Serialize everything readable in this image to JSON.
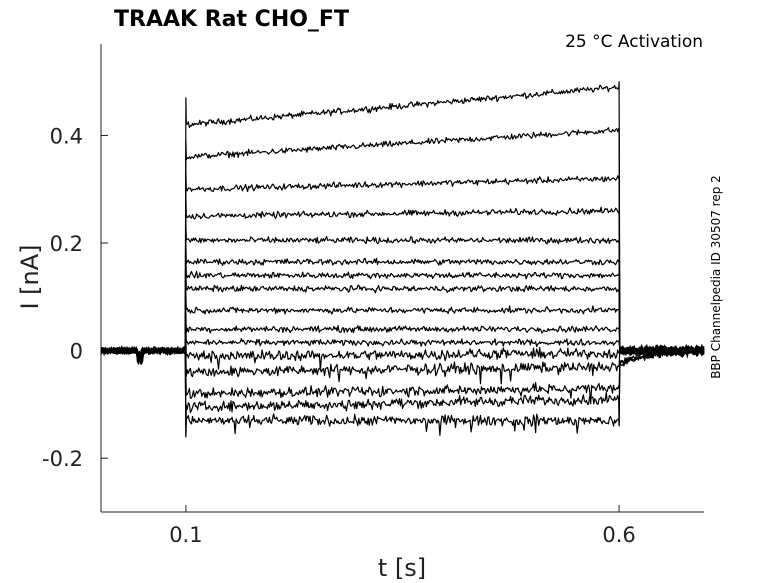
{
  "chart_data": {
    "type": "line",
    "title": "TRAAK  Rat  CHO_FT",
    "subtitle": "25 °C  Activation",
    "xlabel": "t [s]",
    "ylabel": "I [nA]",
    "side_note": "BBP Channelpedia ID 30507 rep 2",
    "xlim": [
      0.002,
      0.698
    ],
    "ylim": [
      -0.3,
      0.57
    ],
    "x_ticks": [
      {
        "value": 0.1,
        "label": "0.1"
      },
      {
        "value": 0.6,
        "label": "0.6"
      }
    ],
    "y_ticks": [
      {
        "value": -0.2,
        "label": "-0.2"
      },
      {
        "value": 0,
        "label": "0"
      },
      {
        "value": 0.2,
        "label": "0.2"
      },
      {
        "value": 0.4,
        "label": "0.4"
      }
    ],
    "grid": false,
    "step_start": 0.1,
    "step_end": 0.6,
    "series": [
      {
        "start": 0.42,
        "end": 0.49
      },
      {
        "start": 0.36,
        "end": 0.41
      },
      {
        "start": 0.3,
        "end": 0.32
      },
      {
        "start": 0.25,
        "end": 0.26
      },
      {
        "start": 0.205,
        "end": 0.205
      },
      {
        "start": 0.165,
        "end": 0.165
      },
      {
        "start": 0.14,
        "end": 0.14
      },
      {
        "start": 0.115,
        "end": 0.115
      },
      {
        "start": 0.075,
        "end": 0.075
      },
      {
        "start": 0.04,
        "end": 0.04
      },
      {
        "start": 0.015,
        "end": 0.015
      },
      {
        "start": -0.01,
        "end": -0.005
      },
      {
        "start": -0.04,
        "end": -0.03
      },
      {
        "start": -0.08,
        "end": -0.07
      },
      {
        "start": -0.105,
        "end": -0.09
      },
      {
        "start": -0.13,
        "end": -0.13
      }
    ]
  }
}
